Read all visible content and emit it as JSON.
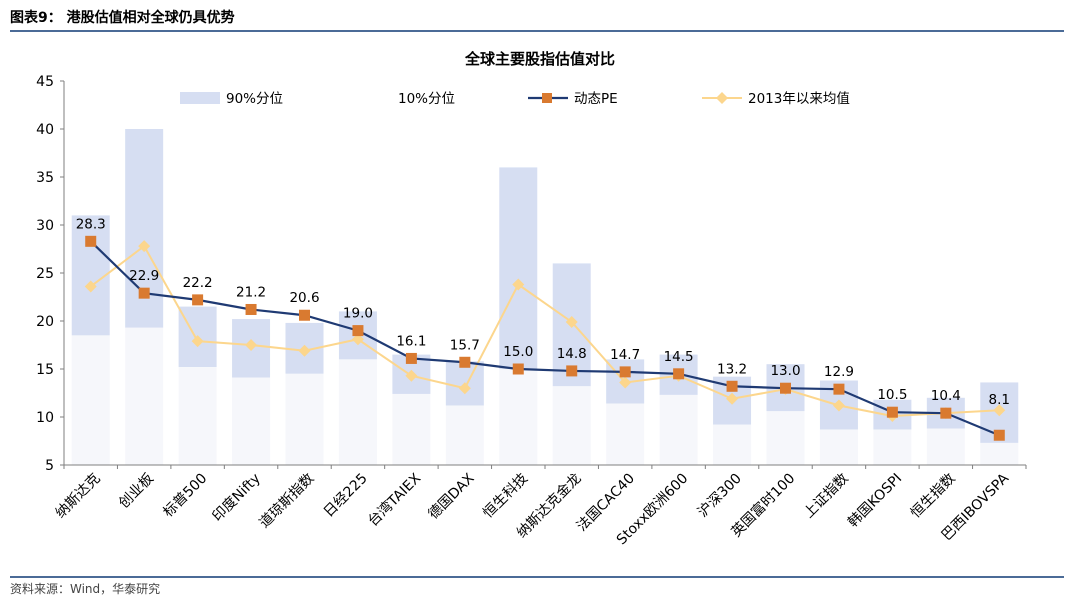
{
  "figure": {
    "title": "图表9：  港股估值相对全球仍具优势",
    "source": "资料来源：Wind，华泰研究"
  },
  "colors": {
    "band": "#d6def2",
    "pe": "#1f3a73",
    "pe_marker": "#d97a30",
    "mean": "#fcd68d",
    "mean_marker": "#fcd68d",
    "rule": "#4b6b97"
  },
  "chart_data": {
    "type": "line",
    "title": "全球主要股指估值对比",
    "xlabel": "",
    "ylabel": "",
    "ylim": [
      5,
      45
    ],
    "yticks": [
      5,
      10,
      15,
      20,
      25,
      30,
      35,
      40,
      45
    ],
    "grid": false,
    "legend_position": "top",
    "categories": [
      "纳斯达克",
      "创业板",
      "标普500",
      "印度Nifty",
      "道琼斯指数",
      "日经225",
      "台湾TAIEX",
      "德国DAX",
      "恒生科技",
      "纳斯达克金龙",
      "法国CAC40",
      "Stoxx欧洲600",
      "沪深300",
      "英国富时100",
      "上证指数",
      "韩国KOSPI",
      "恒生指数",
      "巴西IBOVSPA"
    ],
    "series": [
      {
        "name": "90%分位",
        "kind": "band_top",
        "values": [
          31.0,
          40.0,
          21.5,
          20.2,
          19.8,
          21.0,
          16.5,
          15.8,
          36.0,
          26.0,
          16.0,
          16.5,
          14.2,
          15.5,
          13.8,
          11.8,
          12.0,
          13.6
        ]
      },
      {
        "name": "10%分位",
        "kind": "band_bottom",
        "values": [
          18.5,
          19.3,
          15.2,
          14.1,
          14.5,
          16.0,
          12.4,
          11.2,
          15.0,
          13.2,
          11.4,
          12.3,
          9.2,
          10.6,
          8.7,
          8.7,
          8.8,
          7.3
        ]
      },
      {
        "name": "动态PE",
        "kind": "line",
        "values": [
          28.3,
          22.9,
          22.2,
          21.2,
          20.6,
          19.0,
          16.1,
          15.7,
          15.0,
          14.8,
          14.7,
          14.5,
          13.2,
          13.0,
          12.9,
          10.5,
          10.4,
          8.1
        ],
        "labels": [
          "28.3",
          "22.9",
          "22.2",
          "21.2",
          "20.6",
          "19.0",
          "16.1",
          "15.7",
          "15.0",
          "14.8",
          "14.7",
          "14.5",
          "13.2",
          "13.0",
          "12.9",
          "10.5",
          "10.4",
          "8.1"
        ]
      },
      {
        "name": "2013年以来均值",
        "kind": "line",
        "values": [
          23.6,
          27.8,
          17.9,
          17.5,
          16.9,
          18.1,
          14.3,
          13.0,
          23.8,
          19.9,
          13.6,
          14.3,
          11.9,
          12.9,
          11.2,
          10.1,
          10.4,
          10.7
        ]
      }
    ]
  }
}
